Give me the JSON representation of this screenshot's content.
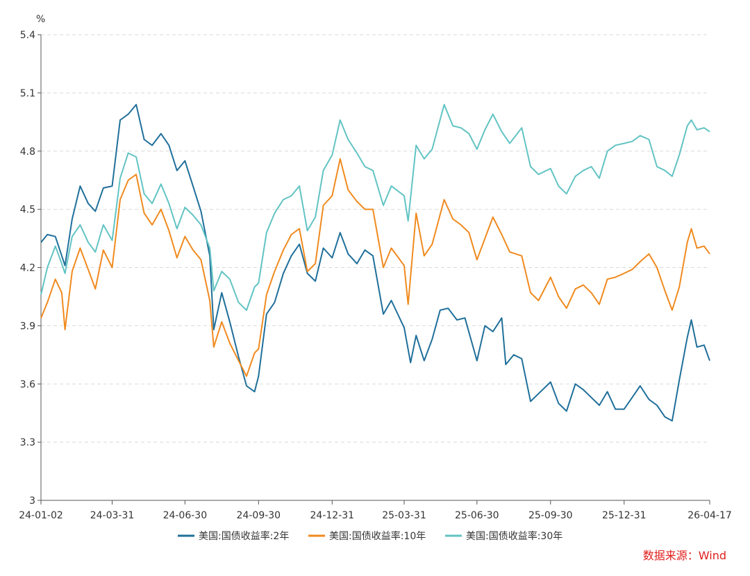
{
  "chart_data": {
    "type": "line",
    "unit_label": "%",
    "ylim": [
      3.0,
      5.4
    ],
    "yticks": [
      "3",
      "3.3",
      "3.6",
      "3.9",
      "4.2",
      "4.5",
      "4.8",
      "5.1",
      "5.4"
    ],
    "ytick_values": [
      3.0,
      3.3,
      3.6,
      3.9,
      4.2,
      4.5,
      4.8,
      5.1,
      5.4
    ],
    "xlim": [
      "2024-01-02",
      "2026-04-17"
    ],
    "xticks": [
      "24-01-02",
      "24-03-31",
      "24-06-30",
      "24-09-30",
      "24-12-31",
      "25-03-31",
      "25-06-30",
      "25-09-30",
      "25-12-31",
      "26-04-17"
    ],
    "xtick_dates": [
      "2024-01-02",
      "2024-03-31",
      "2024-06-30",
      "2024-09-30",
      "2024-12-31",
      "2025-03-31",
      "2025-06-30",
      "2025-09-30",
      "2025-12-31",
      "2026-04-17"
    ],
    "grid": "horizontal-dashed",
    "legend_position": "bottom",
    "source": "数据来源：Wind",
    "series": [
      {
        "name": "美国:国债收益率:2年",
        "color": "#1f6f9a",
        "points": [
          [
            "2024-01-02",
            4.33
          ],
          [
            "2024-01-10",
            4.37
          ],
          [
            "2024-01-20",
            4.36
          ],
          [
            "2024-02-01",
            4.21
          ],
          [
            "2024-02-10",
            4.45
          ],
          [
            "2024-02-20",
            4.62
          ],
          [
            "2024-03-01",
            4.53
          ],
          [
            "2024-03-10",
            4.49
          ],
          [
            "2024-03-20",
            4.61
          ],
          [
            "2024-03-31",
            4.62
          ],
          [
            "2024-04-10",
            4.96
          ],
          [
            "2024-04-20",
            4.99
          ],
          [
            "2024-04-30",
            5.04
          ],
          [
            "2024-05-10",
            4.86
          ],
          [
            "2024-05-20",
            4.83
          ],
          [
            "2024-05-31",
            4.89
          ],
          [
            "2024-06-10",
            4.83
          ],
          [
            "2024-06-20",
            4.7
          ],
          [
            "2024-06-30",
            4.75
          ],
          [
            "2024-07-10",
            4.62
          ],
          [
            "2024-07-20",
            4.49
          ],
          [
            "2024-07-31",
            4.26
          ],
          [
            "2024-08-05",
            3.88
          ],
          [
            "2024-08-15",
            4.07
          ],
          [
            "2024-08-25",
            3.92
          ],
          [
            "2024-09-05",
            3.74
          ],
          [
            "2024-09-15",
            3.59
          ],
          [
            "2024-09-25",
            3.56
          ],
          [
            "2024-09-30",
            3.64
          ],
          [
            "2024-10-10",
            3.96
          ],
          [
            "2024-10-20",
            4.02
          ],
          [
            "2024-10-31",
            4.17
          ],
          [
            "2024-11-10",
            4.26
          ],
          [
            "2024-11-20",
            4.32
          ],
          [
            "2024-11-30",
            4.17
          ],
          [
            "2024-12-10",
            4.13
          ],
          [
            "2024-12-20",
            4.3
          ],
          [
            "2024-12-31",
            4.25
          ],
          [
            "2025-01-10",
            4.38
          ],
          [
            "2025-01-20",
            4.27
          ],
          [
            "2025-01-31",
            4.22
          ],
          [
            "2025-02-10",
            4.29
          ],
          [
            "2025-02-20",
            4.26
          ],
          [
            "2025-03-05",
            3.96
          ],
          [
            "2025-03-15",
            4.03
          ],
          [
            "2025-03-31",
            3.89
          ],
          [
            "2025-04-08",
            3.71
          ],
          [
            "2025-04-15",
            3.85
          ],
          [
            "2025-04-25",
            3.72
          ],
          [
            "2025-05-05",
            3.83
          ],
          [
            "2025-05-15",
            3.98
          ],
          [
            "2025-05-25",
            3.99
          ],
          [
            "2025-06-05",
            3.93
          ],
          [
            "2025-06-15",
            3.94
          ],
          [
            "2025-06-30",
            3.72
          ],
          [
            "2025-07-10",
            3.9
          ],
          [
            "2025-07-20",
            3.87
          ],
          [
            "2025-07-31",
            3.94
          ],
          [
            "2025-08-05",
            3.7
          ],
          [
            "2025-08-15",
            3.75
          ],
          [
            "2025-08-25",
            3.73
          ],
          [
            "2025-09-05",
            3.51
          ],
          [
            "2025-09-15",
            3.55
          ],
          [
            "2025-09-30",
            3.61
          ],
          [
            "2025-10-10",
            3.5
          ],
          [
            "2025-10-20",
            3.46
          ],
          [
            "2025-10-31",
            3.6
          ],
          [
            "2025-11-10",
            3.57
          ],
          [
            "2025-11-20",
            3.53
          ],
          [
            "2025-11-30",
            3.49
          ],
          [
            "2025-12-10",
            3.56
          ],
          [
            "2025-12-20",
            3.47
          ],
          [
            "2025-12-31",
            3.47
          ],
          [
            "2026-01-10",
            3.53
          ],
          [
            "2026-01-20",
            3.59
          ],
          [
            "2026-01-31",
            3.52
          ],
          [
            "2026-02-10",
            3.49
          ],
          [
            "2026-02-20",
            3.43
          ],
          [
            "2026-03-01",
            3.41
          ],
          [
            "2026-03-10",
            3.62
          ],
          [
            "2026-03-20",
            3.84
          ],
          [
            "2026-03-25",
            3.93
          ],
          [
            "2026-04-01",
            3.79
          ],
          [
            "2026-04-10",
            3.8
          ],
          [
            "2026-04-17",
            3.72
          ]
        ]
      },
      {
        "name": "美国:国债收益率:10年",
        "color": "#f08a1e",
        "points": [
          [
            "2024-01-02",
            3.94
          ],
          [
            "2024-01-10",
            4.02
          ],
          [
            "2024-01-20",
            4.14
          ],
          [
            "2024-01-28",
            4.07
          ],
          [
            "2024-02-01",
            3.88
          ],
          [
            "2024-02-10",
            4.18
          ],
          [
            "2024-02-20",
            4.3
          ],
          [
            "2024-03-01",
            4.19
          ],
          [
            "2024-03-10",
            4.09
          ],
          [
            "2024-03-20",
            4.29
          ],
          [
            "2024-03-31",
            4.2
          ],
          [
            "2024-04-10",
            4.55
          ],
          [
            "2024-04-20",
            4.65
          ],
          [
            "2024-04-30",
            4.68
          ],
          [
            "2024-05-10",
            4.48
          ],
          [
            "2024-05-20",
            4.42
          ],
          [
            "2024-05-31",
            4.5
          ],
          [
            "2024-06-10",
            4.39
          ],
          [
            "2024-06-20",
            4.25
          ],
          [
            "2024-06-30",
            4.36
          ],
          [
            "2024-07-10",
            4.29
          ],
          [
            "2024-07-20",
            4.24
          ],
          [
            "2024-07-31",
            4.03
          ],
          [
            "2024-08-05",
            3.79
          ],
          [
            "2024-08-15",
            3.92
          ],
          [
            "2024-08-25",
            3.81
          ],
          [
            "2024-09-05",
            3.72
          ],
          [
            "2024-09-15",
            3.64
          ],
          [
            "2024-09-25",
            3.76
          ],
          [
            "2024-09-30",
            3.78
          ],
          [
            "2024-10-10",
            4.06
          ],
          [
            "2024-10-20",
            4.18
          ],
          [
            "2024-10-31",
            4.29
          ],
          [
            "2024-11-10",
            4.37
          ],
          [
            "2024-11-20",
            4.4
          ],
          [
            "2024-11-30",
            4.18
          ],
          [
            "2024-12-10",
            4.22
          ],
          [
            "2024-12-20",
            4.52
          ],
          [
            "2024-12-31",
            4.57
          ],
          [
            "2025-01-10",
            4.76
          ],
          [
            "2025-01-20",
            4.6
          ],
          [
            "2025-01-31",
            4.54
          ],
          [
            "2025-02-10",
            4.5
          ],
          [
            "2025-02-20",
            4.5
          ],
          [
            "2025-03-05",
            4.2
          ],
          [
            "2025-03-15",
            4.3
          ],
          [
            "2025-03-31",
            4.21
          ],
          [
            "2025-04-05",
            4.01
          ],
          [
            "2025-04-15",
            4.48
          ],
          [
            "2025-04-25",
            4.26
          ],
          [
            "2025-05-05",
            4.32
          ],
          [
            "2025-05-20",
            4.55
          ],
          [
            "2025-05-31",
            4.45
          ],
          [
            "2025-06-10",
            4.42
          ],
          [
            "2025-06-20",
            4.38
          ],
          [
            "2025-06-30",
            4.24
          ],
          [
            "2025-07-10",
            4.35
          ],
          [
            "2025-07-20",
            4.46
          ],
          [
            "2025-07-31",
            4.37
          ],
          [
            "2025-08-10",
            4.28
          ],
          [
            "2025-08-25",
            4.26
          ],
          [
            "2025-09-05",
            4.07
          ],
          [
            "2025-09-15",
            4.03
          ],
          [
            "2025-09-30",
            4.15
          ],
          [
            "2025-10-10",
            4.05
          ],
          [
            "2025-10-20",
            3.99
          ],
          [
            "2025-10-31",
            4.09
          ],
          [
            "2025-11-10",
            4.11
          ],
          [
            "2025-11-20",
            4.07
          ],
          [
            "2025-11-30",
            4.01
          ],
          [
            "2025-12-10",
            4.14
          ],
          [
            "2025-12-20",
            4.15
          ],
          [
            "2025-12-31",
            4.17
          ],
          [
            "2026-01-10",
            4.19
          ],
          [
            "2026-01-20",
            4.23
          ],
          [
            "2026-01-31",
            4.27
          ],
          [
            "2026-02-10",
            4.2
          ],
          [
            "2026-02-20",
            4.08
          ],
          [
            "2026-03-01",
            3.98
          ],
          [
            "2026-03-10",
            4.1
          ],
          [
            "2026-03-20",
            4.33
          ],
          [
            "2026-03-25",
            4.4
          ],
          [
            "2026-04-01",
            4.3
          ],
          [
            "2026-04-10",
            4.31
          ],
          [
            "2026-04-17",
            4.27
          ]
        ]
      },
      {
        "name": "美国:国债收益率:30年",
        "color": "#62c3c3",
        "points": [
          [
            "2024-01-02",
            4.06
          ],
          [
            "2024-01-10",
            4.2
          ],
          [
            "2024-01-20",
            4.31
          ],
          [
            "2024-01-28",
            4.22
          ],
          [
            "2024-02-01",
            4.17
          ],
          [
            "2024-02-10",
            4.36
          ],
          [
            "2024-02-20",
            4.42
          ],
          [
            "2024-03-01",
            4.33
          ],
          [
            "2024-03-10",
            4.28
          ],
          [
            "2024-03-20",
            4.42
          ],
          [
            "2024-03-31",
            4.34
          ],
          [
            "2024-04-10",
            4.66
          ],
          [
            "2024-04-20",
            4.79
          ],
          [
            "2024-04-30",
            4.77
          ],
          [
            "2024-05-10",
            4.58
          ],
          [
            "2024-05-20",
            4.53
          ],
          [
            "2024-05-31",
            4.63
          ],
          [
            "2024-06-10",
            4.53
          ],
          [
            "2024-06-20",
            4.4
          ],
          [
            "2024-06-30",
            4.51
          ],
          [
            "2024-07-10",
            4.47
          ],
          [
            "2024-07-20",
            4.42
          ],
          [
            "2024-07-31",
            4.3
          ],
          [
            "2024-08-05",
            4.08
          ],
          [
            "2024-08-15",
            4.18
          ],
          [
            "2024-08-25",
            4.14
          ],
          [
            "2024-09-05",
            4.02
          ],
          [
            "2024-09-15",
            3.98
          ],
          [
            "2024-09-25",
            4.1
          ],
          [
            "2024-09-30",
            4.12
          ],
          [
            "2024-10-10",
            4.38
          ],
          [
            "2024-10-20",
            4.48
          ],
          [
            "2024-10-31",
            4.55
          ],
          [
            "2024-11-10",
            4.57
          ],
          [
            "2024-11-20",
            4.62
          ],
          [
            "2024-11-30",
            4.39
          ],
          [
            "2024-12-10",
            4.46
          ],
          [
            "2024-12-20",
            4.7
          ],
          [
            "2024-12-31",
            4.78
          ],
          [
            "2025-01-10",
            4.96
          ],
          [
            "2025-01-20",
            4.86
          ],
          [
            "2025-01-31",
            4.79
          ],
          [
            "2025-02-10",
            4.72
          ],
          [
            "2025-02-20",
            4.7
          ],
          [
            "2025-03-05",
            4.52
          ],
          [
            "2025-03-15",
            4.62
          ],
          [
            "2025-03-31",
            4.57
          ],
          [
            "2025-04-05",
            4.44
          ],
          [
            "2025-04-15",
            4.83
          ],
          [
            "2025-04-25",
            4.76
          ],
          [
            "2025-05-05",
            4.81
          ],
          [
            "2025-05-20",
            5.04
          ],
          [
            "2025-05-31",
            4.93
          ],
          [
            "2025-06-10",
            4.92
          ],
          [
            "2025-06-20",
            4.89
          ],
          [
            "2025-06-30",
            4.81
          ],
          [
            "2025-07-10",
            4.91
          ],
          [
            "2025-07-20",
            4.99
          ],
          [
            "2025-07-31",
            4.9
          ],
          [
            "2025-08-10",
            4.84
          ],
          [
            "2025-08-25",
            4.92
          ],
          [
            "2025-09-05",
            4.72
          ],
          [
            "2025-09-15",
            4.68
          ],
          [
            "2025-09-30",
            4.71
          ],
          [
            "2025-10-10",
            4.62
          ],
          [
            "2025-10-20",
            4.58
          ],
          [
            "2025-10-31",
            4.67
          ],
          [
            "2025-11-10",
            4.7
          ],
          [
            "2025-11-20",
            4.72
          ],
          [
            "2025-11-30",
            4.66
          ],
          [
            "2025-12-10",
            4.8
          ],
          [
            "2025-12-20",
            4.83
          ],
          [
            "2025-12-31",
            4.84
          ],
          [
            "2026-01-10",
            4.85
          ],
          [
            "2026-01-20",
            4.88
          ],
          [
            "2026-01-31",
            4.86
          ],
          [
            "2026-02-10",
            4.72
          ],
          [
            "2026-02-20",
            4.7
          ],
          [
            "2026-03-01",
            4.67
          ],
          [
            "2026-03-10",
            4.78
          ],
          [
            "2026-03-20",
            4.93
          ],
          [
            "2026-03-25",
            4.96
          ],
          [
            "2026-04-01",
            4.91
          ],
          [
            "2026-04-10",
            4.92
          ],
          [
            "2026-04-17",
            4.9
          ]
        ]
      }
    ]
  }
}
